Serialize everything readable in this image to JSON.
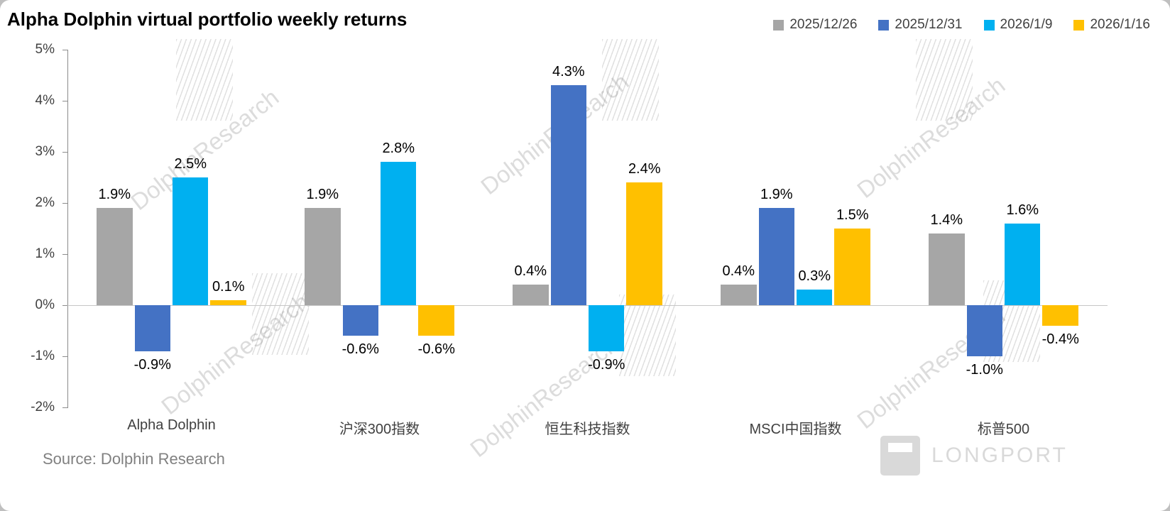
{
  "title": "Alpha Dolphin virtual portfolio weekly returns",
  "source": "Source: Dolphin Research",
  "watermark_text": "DolphinResearch",
  "logo_text": "LONGPORT",
  "legend": [
    {
      "label": "2025/12/26",
      "color": "#a6a6a6"
    },
    {
      "label": "2025/12/31",
      "color": "#4472c4"
    },
    {
      "label": "2026/1/9",
      "color": "#00b0f0"
    },
    {
      "label": "2026/1/16",
      "color": "#ffc000"
    }
  ],
  "chart_data": {
    "type": "bar",
    "title": "Alpha Dolphin virtual portfolio weekly returns",
    "categories": [
      "Alpha Dolphin",
      "沪深300指数",
      "恒生科技指数",
      "MSCI中国指数",
      "标普500"
    ],
    "series": [
      {
        "name": "2025/12/26",
        "color": "#a6a6a6",
        "values": [
          1.9,
          1.9,
          0.4,
          0.4,
          1.4
        ]
      },
      {
        "name": "2025/12/31",
        "color": "#4472c4",
        "values": [
          -0.9,
          -0.6,
          4.3,
          1.9,
          -1.0
        ]
      },
      {
        "name": "2026/1/9",
        "color": "#00b0f0",
        "values": [
          2.5,
          2.8,
          -0.9,
          0.3,
          1.6
        ]
      },
      {
        "name": "2026/1/16",
        "color": "#ffc000",
        "values": [
          0.1,
          -0.6,
          2.4,
          1.5,
          -0.4
        ]
      }
    ],
    "ylim": [
      -2,
      5
    ],
    "ytick_step": 1,
    "ytick_labels": [
      "5%",
      "4%",
      "3%",
      "2%",
      "1%",
      "0%",
      "-1%",
      "-2%"
    ],
    "value_format": "one_decimal_percent",
    "legend_position": "top-right",
    "grid": false,
    "zero_line": true
  }
}
